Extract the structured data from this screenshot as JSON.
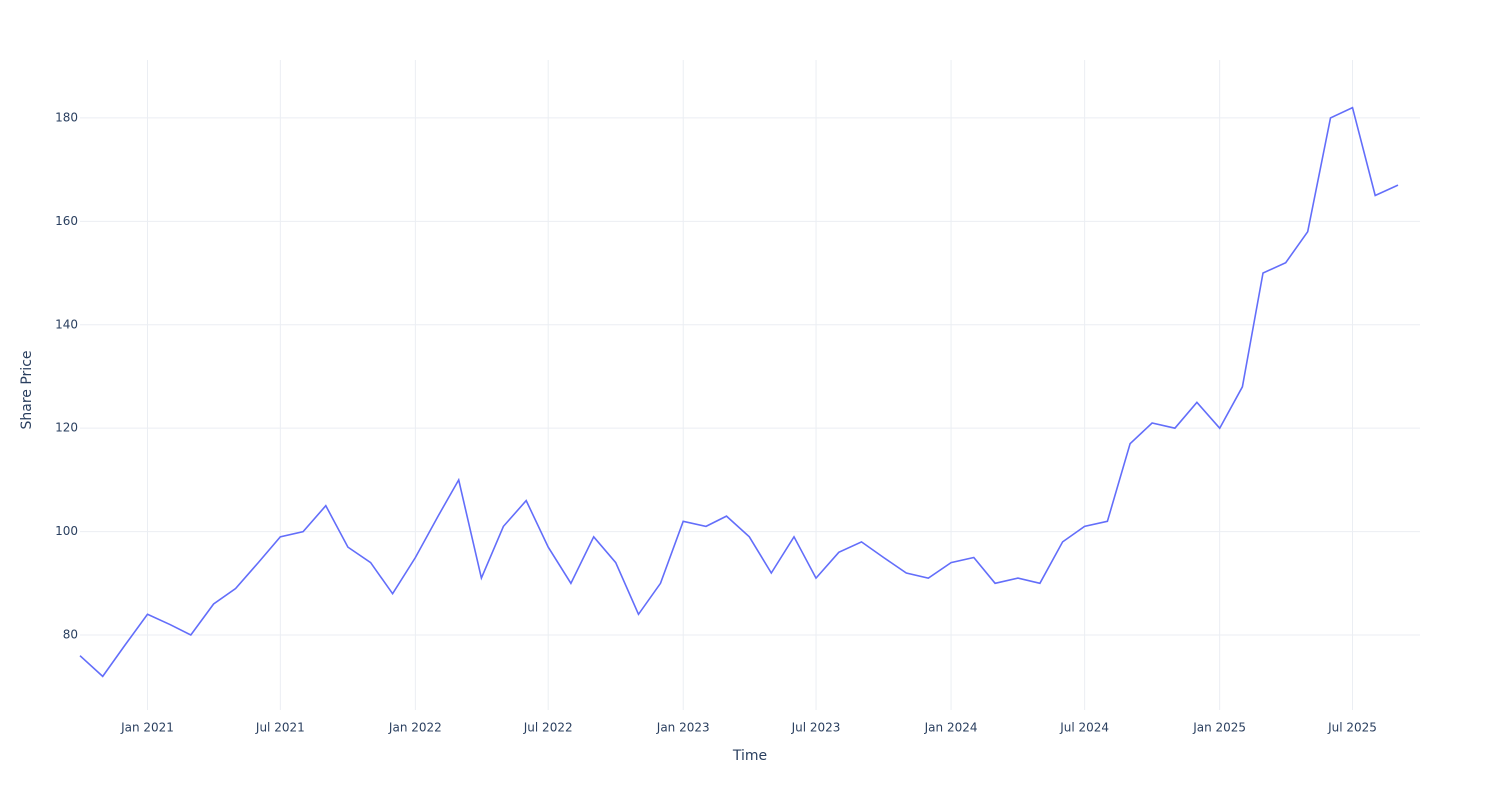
{
  "chart_data": {
    "type": "line",
    "x_label": "Time",
    "y_label": "Share Price",
    "x": [
      "2020-10",
      "2020-11",
      "2020-12",
      "2021-01",
      "2021-02",
      "2021-03",
      "2021-04",
      "2021-05",
      "2021-06",
      "2021-07",
      "2021-08",
      "2021-09",
      "2021-10",
      "2021-11",
      "2021-12",
      "2022-01",
      "2022-02",
      "2022-03",
      "2022-04",
      "2022-05",
      "2022-06",
      "2022-07",
      "2022-08",
      "2022-09",
      "2022-10",
      "2022-11",
      "2022-12",
      "2023-01",
      "2023-02",
      "2023-03",
      "2023-04",
      "2023-05",
      "2023-06",
      "2023-07",
      "2023-08",
      "2023-09",
      "2023-10",
      "2023-11",
      "2023-12",
      "2024-01",
      "2024-02",
      "2024-03",
      "2024-04",
      "2024-05",
      "2024-06",
      "2024-07",
      "2024-08",
      "2024-09",
      "2024-10",
      "2024-11",
      "2024-12",
      "2025-01",
      "2025-02",
      "2025-03",
      "2025-04",
      "2025-05",
      "2025-06",
      "2025-07",
      "2025-08",
      "2025-09"
    ],
    "series": [
      {
        "name": "Share Price",
        "color": "#636efa",
        "values": [
          76,
          72,
          78,
          84,
          82,
          80,
          86,
          89,
          94,
          99,
          100,
          105,
          97,
          94,
          88,
          95,
          103,
          110,
          91,
          101,
          106,
          97,
          90,
          99,
          94,
          84,
          90,
          102,
          101,
          103,
          99,
          92,
          99,
          91,
          96,
          98,
          95,
          92,
          91,
          94,
          95,
          90,
          91,
          90,
          98,
          101,
          102,
          117,
          121,
          120,
          125,
          120,
          128,
          150,
          152,
          158,
          180,
          182,
          165,
          167
        ]
      }
    ],
    "xlim": [
      "2020-10",
      "2025-10"
    ],
    "xticks": [
      {
        "value": "2021-01",
        "label": "Jan 2021"
      },
      {
        "value": "2021-07",
        "label": "Jul 2021"
      },
      {
        "value": "2022-01",
        "label": "Jan 2022"
      },
      {
        "value": "2022-07",
        "label": "Jul 2022"
      },
      {
        "value": "2023-01",
        "label": "Jan 2023"
      },
      {
        "value": "2023-07",
        "label": "Jul 2023"
      },
      {
        "value": "2024-01",
        "label": "Jan 2024"
      },
      {
        "value": "2024-07",
        "label": "Jul 2024"
      },
      {
        "value": "2025-01",
        "label": "Jan 2025"
      },
      {
        "value": "2025-07",
        "label": "Jul 2025"
      }
    ],
    "ylim": [
      65.5,
      191.2
    ],
    "yticks": [
      80,
      100,
      120,
      140,
      160,
      180
    ],
    "grid": true
  }
}
